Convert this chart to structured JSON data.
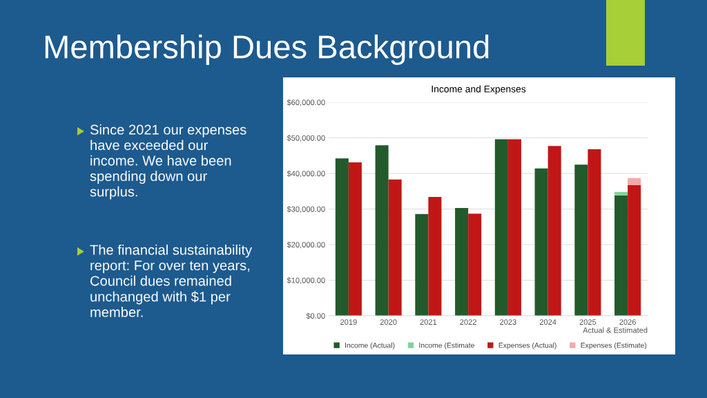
{
  "chart_data": {
    "type": "bar",
    "title": "Membership Dues Background",
    "subtitle": "Income and Expenses",
    "xlabel": "Actual & Estimated",
    "annotations": [
      "Since 2021 our expenses\nhave exceeded our\nincome. We have been\nspending down our\nsurplus.",
      "The financial sustainability\nreport: For over ten years,\nCouncil dues remained\nunchanged with $1 per\nmember."
    ],
    "categories": [
      "2019",
      "2020",
      "2021",
      "2022",
      "2023",
      "2024",
      "2025",
      "2026"
    ],
    "series": [
      {
        "name": "Income (Actual)",
        "color": "#225a2b",
        "values": [
          44200,
          47900,
          28600,
          30300,
          49600,
          41400,
          42500,
          33800
        ]
      },
      {
        "name": "Income (Estimate",
        "color": "#7fd49a",
        "values": [
          null,
          null,
          null,
          null,
          null,
          null,
          null,
          1000
        ],
        "base": [
          null,
          null,
          null,
          null,
          null,
          null,
          null,
          33800
        ]
      },
      {
        "name": "Expenses (Actual)",
        "color": "#c01716",
        "values": [
          43100,
          38300,
          33400,
          28700,
          49600,
          47700,
          46800,
          36700
        ]
      },
      {
        "name": "Expenses (Estimate)",
        "color": "#f4aaaa",
        "values": [
          null,
          null,
          null,
          null,
          null,
          null,
          null,
          2000
        ],
        "base": [
          null,
          null,
          null,
          null,
          null,
          null,
          null,
          36700
        ]
      }
    ],
    "ylim": [
      0,
      60000
    ],
    "yticks": [
      {
        "value": 0,
        "label": "$0.00"
      },
      {
        "value": 10000,
        "label": "$10,000.00"
      },
      {
        "value": 20000,
        "label": "$20,000.00"
      },
      {
        "value": 30000,
        "label": "$30,000.00"
      },
      {
        "value": 40000,
        "label": "$40,000.00"
      },
      {
        "value": 50000,
        "label": "$50,000.00"
      },
      {
        "value": 60000,
        "label": "$60,000.00"
      }
    ],
    "grid": "y",
    "legend": "bottom"
  }
}
